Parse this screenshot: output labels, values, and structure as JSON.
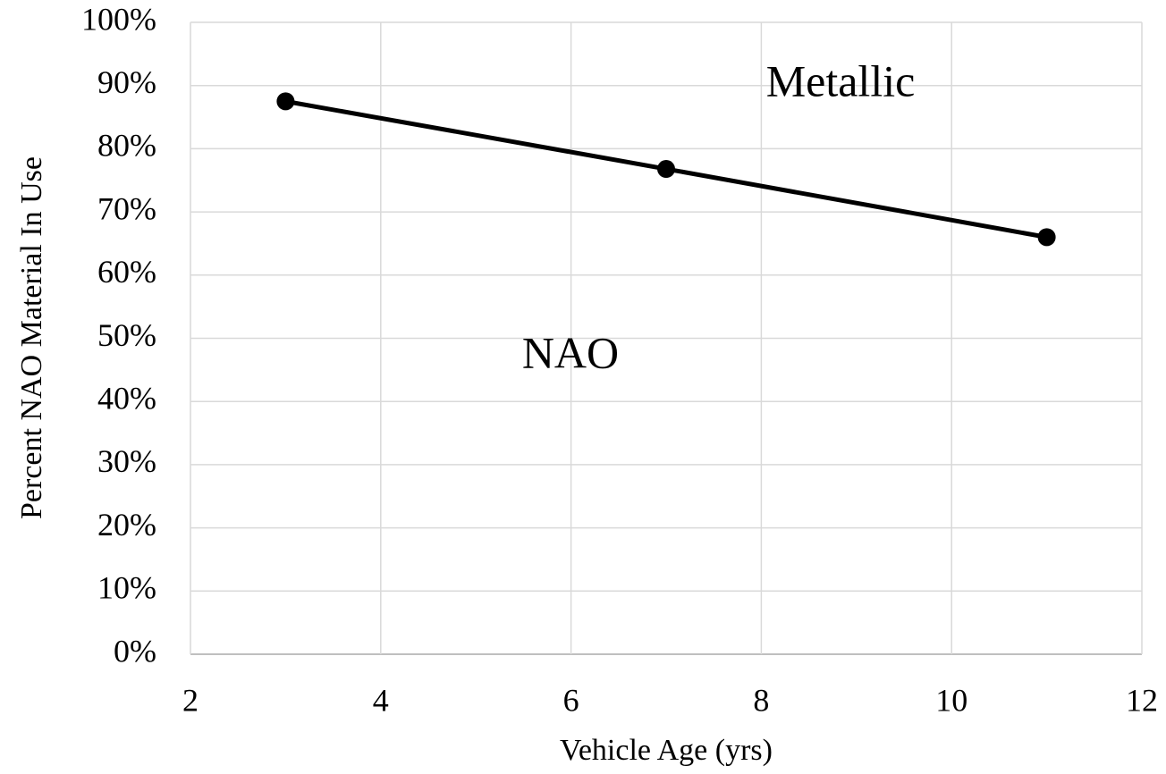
{
  "chart_data": {
    "type": "line",
    "x": [
      3,
      7,
      11
    ],
    "values": [
      87.5,
      76.8,
      66
    ],
    "color": "#000000",
    "markers": true,
    "xlabel": "Vehicle Age (yrs)",
    "ylabel": "Percent NAO Material In Use",
    "xlim": [
      2,
      12
    ],
    "xticks": [
      2,
      4,
      6,
      8,
      10,
      12
    ],
    "ylim": [
      0,
      100
    ],
    "yticks": [
      {
        "value": 0,
        "label": "0%"
      },
      {
        "value": 10,
        "label": "10%"
      },
      {
        "value": 20,
        "label": "20%"
      },
      {
        "value": 30,
        "label": "30%"
      },
      {
        "value": 40,
        "label": "40%"
      },
      {
        "value": 50,
        "label": "50%"
      },
      {
        "value": 60,
        "label": "60%"
      },
      {
        "value": 70,
        "label": "70%"
      },
      {
        "value": 80,
        "label": "80%"
      },
      {
        "value": 90,
        "label": "90%"
      },
      {
        "value": 100,
        "label": "100%"
      }
    ],
    "grid": true,
    "annotations": [
      "Metallic",
      "NAO"
    ]
  }
}
